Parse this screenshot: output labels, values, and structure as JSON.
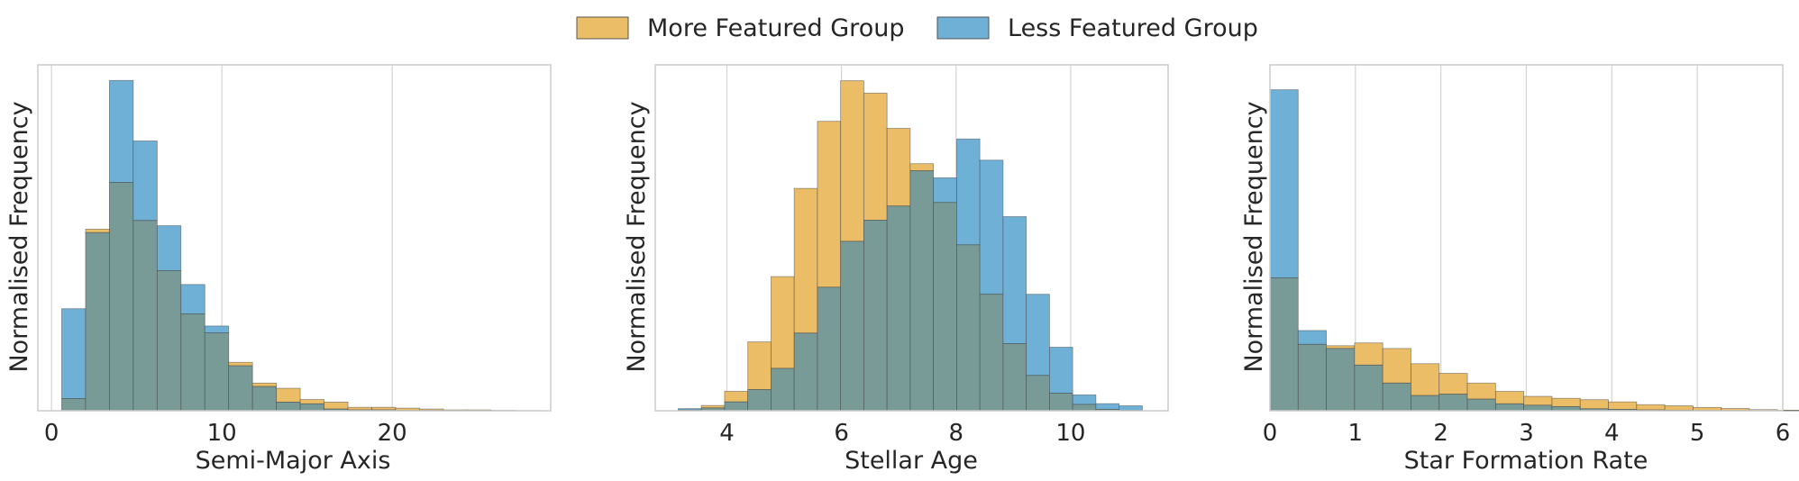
{
  "legend": {
    "placement": "top-center",
    "entries": [
      {
        "label": "More Featured Group",
        "color": "#E69F00"
      },
      {
        "label": "Less Featured Group",
        "color": "#0072B2"
      }
    ]
  },
  "colors": {
    "more_fill": "#ebbd66",
    "less_fill": "#6fb0d6",
    "overlap_fill": "#789b98",
    "edge": "#444444",
    "grid": "#d3d3d3",
    "frame": "#cccccc"
  },
  "chart_data": [
    {
      "type": "bar",
      "histogram": true,
      "xlabel": "Semi-Major Axis",
      "ylabel": "Normalised Frequency",
      "xlim": [
        -0.8,
        29.3
      ],
      "xticks": [
        0,
        10,
        20
      ],
      "grid": "vertical",
      "bin_start": 0.6,
      "bin_width": 1.4,
      "series": [
        {
          "name": "More Featured Group",
          "values": [
            0.07,
            1.05,
            1.32,
            1.1,
            0.81,
            0.56,
            0.45,
            0.28,
            0.16,
            0.13,
            0.065,
            0.05,
            0.02,
            0.02,
            0.015,
            0.01,
            0.005,
            0.005,
            0.002,
            0.001
          ]
        },
        {
          "name": "Less Featured Group",
          "values": [
            0.59,
            1.03,
            1.91,
            1.56,
            1.07,
            0.73,
            0.49,
            0.26,
            0.14,
            0.05,
            0.04,
            0.01,
            0.005,
            0.005,
            0.002,
            0.002,
            0.001,
            0.001,
            0.001,
            0.0
          ]
        }
      ],
      "ylim": [
        0,
        2.0
      ]
    },
    {
      "type": "bar",
      "histogram": true,
      "xlabel": "Stellar Age",
      "ylabel": "Normalised Frequency",
      "xlim": [
        2.75,
        11.7
      ],
      "xticks": [
        4,
        6,
        8,
        10
      ],
      "grid": "vertical",
      "bin_start": 3.15,
      "bin_width": 0.405,
      "series": [
        {
          "name": "More Featured Group",
          "values": [
            0.002,
            0.015,
            0.055,
            0.195,
            0.38,
            0.63,
            0.82,
            0.935,
            0.9,
            0.8,
            0.7,
            0.59,
            0.47,
            0.33,
            0.19,
            0.1,
            0.05,
            0.018,
            0.004,
            0.001
          ]
        },
        {
          "name": "Less Featured Group",
          "values": [
            0.006,
            0.008,
            0.025,
            0.06,
            0.12,
            0.22,
            0.35,
            0.48,
            0.54,
            0.58,
            0.68,
            0.66,
            0.77,
            0.71,
            0.55,
            0.33,
            0.18,
            0.045,
            0.02,
            0.014
          ]
        }
      ],
      "ylim": [
        0,
        0.98
      ]
    },
    {
      "type": "bar",
      "histogram": true,
      "xlabel": "Star Formation Rate",
      "ylabel": "Normalised Frequency",
      "xlim": [
        0,
        6.0
      ],
      "xticks": [
        0,
        1,
        2,
        3,
        4,
        5,
        6
      ],
      "grid": "vertical",
      "bin_start": 0,
      "bin_width": 0.33,
      "series": [
        {
          "name": "More Featured Group",
          "values": [
            0.48,
            0.24,
            0.235,
            0.245,
            0.225,
            0.17,
            0.135,
            0.1,
            0.07,
            0.052,
            0.045,
            0.04,
            0.032,
            0.022,
            0.018,
            0.012,
            0.008,
            0.004,
            0.002
          ]
        },
        {
          "name": "Less Featured Group",
          "values": [
            1.16,
            0.29,
            0.225,
            0.165,
            0.1,
            0.055,
            0.06,
            0.042,
            0.025,
            0.02,
            0.015,
            0.007,
            0.005,
            0.003,
            0.002,
            0.001,
            0.001,
            0.0005,
            0.0003
          ]
        }
      ],
      "ylim": [
        0,
        1.25
      ]
    }
  ]
}
